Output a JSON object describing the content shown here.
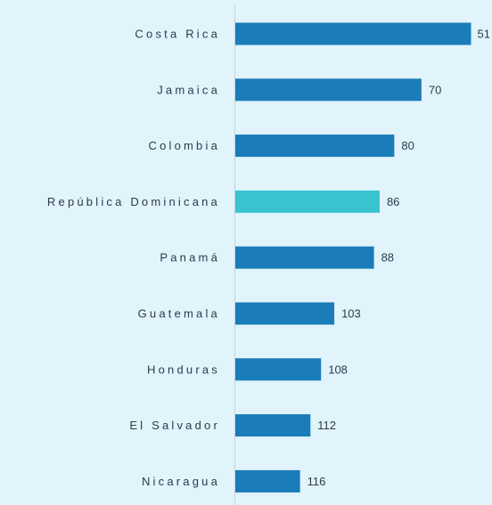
{
  "chart_data": {
    "type": "bar",
    "orientation": "horizontal",
    "categories": [
      "Costa Rica",
      "Jamaica",
      "Colombia",
      "República Dominicana",
      "Panamá",
      "Guatemala",
      "Honduras",
      "El Salvador",
      "Nicaragua"
    ],
    "values": [
      51,
      70,
      80,
      86,
      88,
      103,
      108,
      112,
      116
    ],
    "bar_lengths": [
      100,
      79.0,
      67.5,
      61.3,
      58.9,
      42.1,
      36.5,
      32.0,
      27.6
    ],
    "title": "",
    "xlabel": "",
    "ylabel": "",
    "grid": false,
    "legend": "none",
    "colors": {
      "background": "#e1f3fb",
      "bar": "#1a7cb8",
      "highlight": "#39c2cf",
      "axis": "#c5d3dc",
      "text": "#2b3b4a"
    },
    "highlight_category": "República Dominicana"
  }
}
